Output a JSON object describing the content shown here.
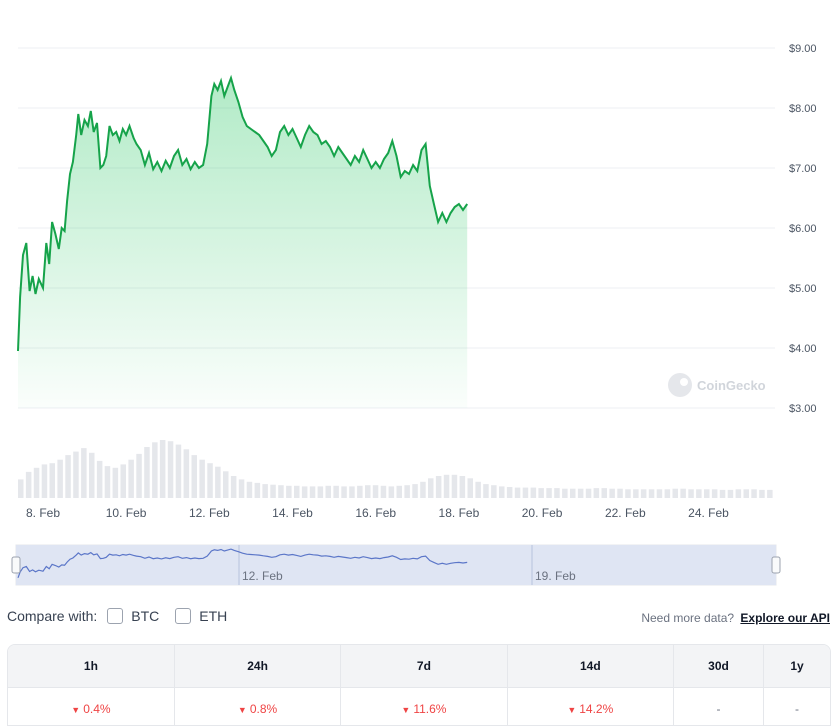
{
  "chart_data": {
    "type": "area",
    "title": "",
    "ylabel": "",
    "xlabel": "",
    "y_ticks": [
      "$9.00",
      "$8.00",
      "$7.00",
      "$6.00",
      "$5.00",
      "$4.00",
      "$3.00"
    ],
    "ylim": [
      3,
      9
    ],
    "x_ticks": [
      "8. Feb",
      "10. Feb",
      "12. Feb",
      "14. Feb",
      "16. Feb",
      "18. Feb",
      "20. Feb",
      "22. Feb",
      "24. Feb"
    ],
    "x_range_days": [
      7.4,
      25.6
    ],
    "series": [
      {
        "values": [
          [
            7.4,
            3.95
          ],
          [
            7.45,
            4.85
          ],
          [
            7.52,
            5.55
          ],
          [
            7.6,
            5.75
          ],
          [
            7.68,
            4.95
          ],
          [
            7.75,
            5.2
          ],
          [
            7.82,
            4.9
          ],
          [
            7.9,
            5.15
          ],
          [
            8.0,
            5.0
          ],
          [
            8.08,
            5.75
          ],
          [
            8.15,
            5.4
          ],
          [
            8.22,
            6.1
          ],
          [
            8.3,
            5.9
          ],
          [
            8.38,
            5.65
          ],
          [
            8.45,
            6.0
          ],
          [
            8.52,
            5.95
          ],
          [
            8.58,
            6.45
          ],
          [
            8.65,
            6.9
          ],
          [
            8.72,
            7.1
          ],
          [
            8.8,
            7.55
          ],
          [
            8.85,
            7.9
          ],
          [
            8.92,
            7.55
          ],
          [
            9.0,
            7.8
          ],
          [
            9.08,
            7.7
          ],
          [
            9.15,
            7.95
          ],
          [
            9.22,
            7.6
          ],
          [
            9.3,
            7.75
          ],
          [
            9.38,
            7.0
          ],
          [
            9.45,
            7.05
          ],
          [
            9.52,
            7.2
          ],
          [
            9.6,
            7.7
          ],
          [
            9.68,
            7.55
          ],
          [
            9.76,
            7.6
          ],
          [
            9.84,
            7.45
          ],
          [
            9.92,
            7.65
          ],
          [
            10.0,
            7.55
          ],
          [
            10.08,
            7.7
          ],
          [
            10.18,
            7.5
          ],
          [
            10.25,
            7.4
          ],
          [
            10.35,
            7.3
          ],
          [
            10.45,
            7.05
          ],
          [
            10.55,
            7.25
          ],
          [
            10.65,
            6.98
          ],
          [
            10.75,
            7.1
          ],
          [
            10.85,
            6.95
          ],
          [
            10.95,
            7.12
          ],
          [
            11.05,
            7.0
          ],
          [
            11.15,
            7.2
          ],
          [
            11.25,
            7.3
          ],
          [
            11.35,
            7.05
          ],
          [
            11.45,
            7.15
          ],
          [
            11.55,
            6.98
          ],
          [
            11.65,
            7.1
          ],
          [
            11.75,
            7.0
          ],
          [
            11.85,
            7.05
          ],
          [
            11.95,
            7.4
          ],
          [
            12.0,
            7.8
          ],
          [
            12.05,
            8.2
          ],
          [
            12.12,
            8.4
          ],
          [
            12.2,
            8.3
          ],
          [
            12.28,
            8.45
          ],
          [
            12.36,
            8.2
          ],
          [
            12.44,
            8.35
          ],
          [
            12.52,
            8.5
          ],
          [
            12.6,
            8.3
          ],
          [
            12.7,
            8.1
          ],
          [
            12.8,
            7.85
          ],
          [
            12.9,
            7.7
          ],
          [
            13.0,
            7.65
          ],
          [
            13.1,
            7.6
          ],
          [
            13.2,
            7.55
          ],
          [
            13.3,
            7.45
          ],
          [
            13.4,
            7.35
          ],
          [
            13.5,
            7.2
          ],
          [
            13.6,
            7.3
          ],
          [
            13.7,
            7.6
          ],
          [
            13.8,
            7.7
          ],
          [
            13.9,
            7.55
          ],
          [
            14.0,
            7.65
          ],
          [
            14.1,
            7.5
          ],
          [
            14.2,
            7.35
          ],
          [
            14.3,
            7.55
          ],
          [
            14.4,
            7.7
          ],
          [
            14.5,
            7.6
          ],
          [
            14.6,
            7.55
          ],
          [
            14.7,
            7.4
          ],
          [
            14.8,
            7.45
          ],
          [
            14.9,
            7.35
          ],
          [
            15.0,
            7.2
          ],
          [
            15.1,
            7.35
          ],
          [
            15.2,
            7.25
          ],
          [
            15.3,
            7.15
          ],
          [
            15.4,
            7.05
          ],
          [
            15.5,
            7.2
          ],
          [
            15.6,
            7.1
          ],
          [
            15.7,
            7.3
          ],
          [
            15.8,
            7.15
          ],
          [
            15.9,
            7.0
          ],
          [
            16.0,
            7.1
          ],
          [
            16.1,
            7.0
          ],
          [
            16.2,
            7.15
          ],
          [
            16.3,
            7.25
          ],
          [
            16.4,
            7.45
          ],
          [
            16.5,
            7.2
          ],
          [
            16.6,
            6.85
          ],
          [
            16.7,
            6.95
          ],
          [
            16.8,
            6.9
          ],
          [
            16.9,
            7.05
          ],
          [
            17.0,
            6.95
          ],
          [
            17.1,
            7.3
          ],
          [
            17.2,
            7.4
          ],
          [
            17.3,
            6.7
          ],
          [
            17.4,
            6.4
          ],
          [
            17.5,
            6.1
          ],
          [
            17.6,
            6.25
          ],
          [
            17.7,
            6.1
          ],
          [
            17.8,
            6.25
          ],
          [
            17.9,
            6.35
          ],
          [
            18.0,
            6.4
          ],
          [
            18.1,
            6.3
          ],
          [
            18.2,
            6.4
          ]
        ]
      }
    ],
    "volume": [
      0.32,
      0.45,
      0.52,
      0.58,
      0.6,
      0.66,
      0.74,
      0.8,
      0.86,
      0.78,
      0.64,
      0.55,
      0.52,
      0.58,
      0.66,
      0.76,
      0.88,
      0.96,
      1.0,
      0.98,
      0.92,
      0.84,
      0.74,
      0.66,
      0.6,
      0.54,
      0.46,
      0.38,
      0.32,
      0.28,
      0.26,
      0.24,
      0.23,
      0.22,
      0.21,
      0.21,
      0.2,
      0.2,
      0.2,
      0.21,
      0.21,
      0.2,
      0.2,
      0.21,
      0.22,
      0.22,
      0.21,
      0.2,
      0.21,
      0.22,
      0.24,
      0.28,
      0.34,
      0.38,
      0.4,
      0.4,
      0.38,
      0.34,
      0.28,
      0.24,
      0.22,
      0.2,
      0.19,
      0.18,
      0.18,
      0.18,
      0.17,
      0.17,
      0.17,
      0.16,
      0.16,
      0.16,
      0.16,
      0.17,
      0.17,
      0.16,
      0.16,
      0.15,
      0.15,
      0.15,
      0.15,
      0.15,
      0.15,
      0.16,
      0.16,
      0.15,
      0.15,
      0.15,
      0.15,
      0.14,
      0.14,
      0.15,
      0.15,
      0.15,
      0.14,
      0.14
    ],
    "watermark": "CoinGecko",
    "navigator_labels": [
      "12. Feb",
      "19. Feb"
    ],
    "colors": {
      "line": "#16a34a",
      "fill": "#22c55e",
      "navigator": "#5b76c8",
      "navigator_bg": "#dfe5f3"
    }
  },
  "compare": {
    "label": "Compare with:",
    "options": [
      "BTC",
      "ETH"
    ]
  },
  "api": {
    "prompt": "Need more data?",
    "link": "Explore our API"
  },
  "performance": {
    "headers": [
      "1h",
      "24h",
      "7d",
      "14d",
      "30d",
      "1y"
    ],
    "values": [
      "0.4%",
      "0.8%",
      "11.6%",
      "14.2%",
      "-",
      "-"
    ],
    "negative": [
      true,
      true,
      true,
      true,
      false,
      false
    ],
    "negative_color": "#ef4444"
  }
}
